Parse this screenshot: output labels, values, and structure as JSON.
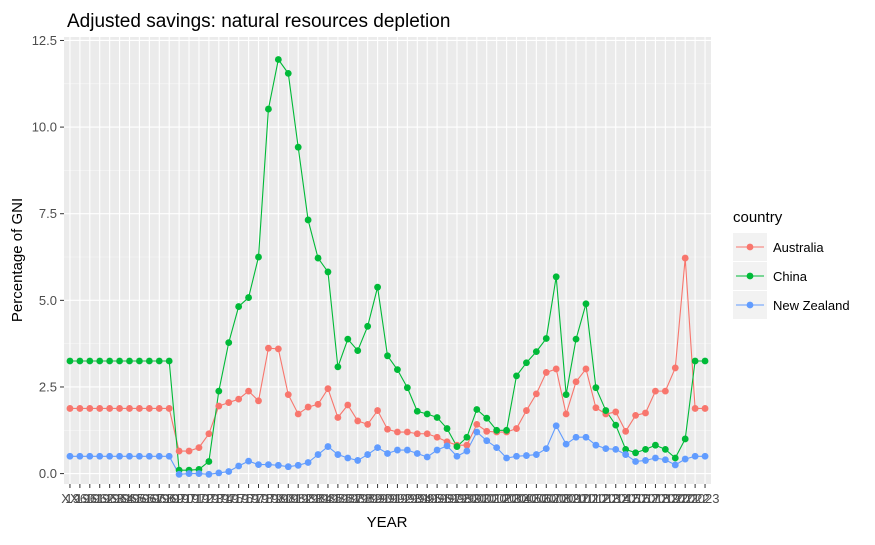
{
  "chart_data": {
    "type": "line",
    "title": "Adjusted savings: natural resources depletion",
    "xlabel": "YEAR",
    "ylabel": "Percentage of GNI",
    "ylim": [
      -0.3,
      12.6
    ],
    "yticks": [
      0.0,
      2.5,
      5.0,
      7.5,
      10.0,
      12.5
    ],
    "ytick_labels": [
      "0.0",
      "2.5",
      "5.0",
      "7.5",
      "10.0",
      "12.5"
    ],
    "x_tick_labels": [
      "XX",
      "1960",
      "1961",
      "1962",
      "1963",
      "1964",
      "1965",
      "1966",
      "1967",
      "1968",
      "1969",
      "1970",
      "1971",
      "1972",
      "1973",
      "1974",
      "1975",
      "1976",
      "1977",
      "1978",
      "1979",
      "1980",
      "1981",
      "1982",
      "1983",
      "1984",
      "1985",
      "1986",
      "1987",
      "1988",
      "1989",
      "1990",
      "1991",
      "1992",
      "1993",
      "1994",
      "1995",
      "1996",
      "1997",
      "1998",
      "1999",
      "2000",
      "2001",
      "2002",
      "2003",
      "2004",
      "2005",
      "2006",
      "2007",
      "2008",
      "2009",
      "2010",
      "2011",
      "2012",
      "2013",
      "2014",
      "2015",
      "2016",
      "2017",
      "2018",
      "2019",
      "2020",
      "2021",
      "2022",
      "2023"
    ],
    "grid": true,
    "legend": {
      "title": "country",
      "position": "right"
    },
    "series": [
      {
        "name": "Australia",
        "color": "#F8766D",
        "values": [
          1.88,
          1.88,
          1.88,
          1.88,
          1.88,
          1.88,
          1.88,
          1.88,
          1.88,
          1.88,
          1.88,
          0.65,
          0.65,
          0.75,
          1.15,
          1.95,
          2.05,
          2.15,
          2.38,
          2.1,
          3.62,
          3.6,
          2.28,
          1.72,
          1.92,
          2.0,
          2.45,
          1.62,
          1.98,
          1.52,
          1.42,
          1.82,
          1.28,
          1.2,
          1.2,
          1.15,
          1.15,
          1.05,
          0.92,
          0.82,
          0.82,
          1.42,
          1.22,
          1.2,
          1.2,
          1.3,
          1.82,
          2.3,
          2.92,
          3.02,
          1.72,
          2.65,
          3.02,
          1.9,
          1.72,
          1.78,
          1.22,
          1.68,
          1.75,
          2.38,
          2.38,
          3.05,
          6.22,
          1.88,
          1.88
        ]
      },
      {
        "name": "China",
        "color": "#00BA38",
        "values": [
          3.25,
          3.25,
          3.25,
          3.25,
          3.25,
          3.25,
          3.25,
          3.25,
          3.25,
          3.25,
          3.25,
          0.1,
          0.1,
          0.12,
          0.35,
          2.38,
          3.78,
          4.82,
          5.08,
          6.25,
          10.52,
          11.95,
          11.55,
          9.42,
          7.32,
          6.22,
          5.82,
          3.08,
          3.88,
          3.55,
          4.25,
          5.38,
          3.4,
          3.0,
          2.48,
          1.8,
          1.72,
          1.62,
          1.3,
          0.78,
          1.05,
          1.85,
          1.6,
          1.25,
          1.25,
          2.82,
          3.2,
          3.52,
          3.9,
          5.68,
          2.28,
          3.88,
          4.9,
          2.48,
          1.82,
          1.4,
          0.7,
          0.6,
          0.7,
          0.82,
          0.7,
          0.45,
          1.0,
          3.25,
          3.25
        ]
      },
      {
        "name": "New Zealand",
        "color": "#619CFF",
        "values": [
          0.5,
          0.5,
          0.5,
          0.5,
          0.5,
          0.5,
          0.5,
          0.5,
          0.5,
          0.5,
          0.5,
          -0.02,
          0.0,
          0.0,
          -0.02,
          0.02,
          0.06,
          0.22,
          0.36,
          0.26,
          0.26,
          0.24,
          0.2,
          0.24,
          0.32,
          0.55,
          0.78,
          0.55,
          0.45,
          0.38,
          0.55,
          0.75,
          0.58,
          0.68,
          0.68,
          0.58,
          0.48,
          0.68,
          0.8,
          0.5,
          0.65,
          1.2,
          0.95,
          0.75,
          0.45,
          0.5,
          0.52,
          0.55,
          0.72,
          1.38,
          0.85,
          1.05,
          1.05,
          0.82,
          0.72,
          0.7,
          0.55,
          0.35,
          0.38,
          0.45,
          0.4,
          0.25,
          0.42,
          0.5,
          0.5
        ]
      }
    ]
  }
}
